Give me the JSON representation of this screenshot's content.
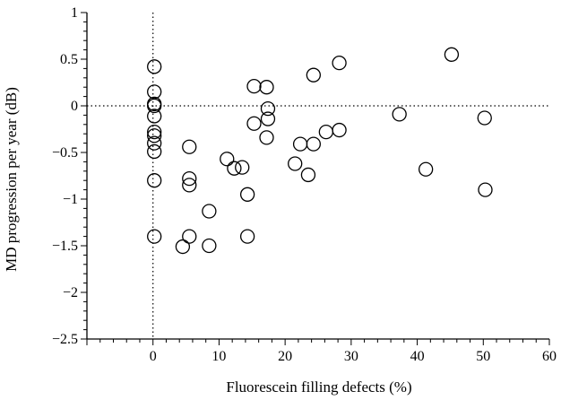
{
  "chart_data": {
    "type": "scatter",
    "title": "",
    "xlabel": "Fluorescein filling defects (%)",
    "ylabel": "MD progression per year (dB)",
    "xlim": [
      -10,
      60
    ],
    "ylim": [
      -2.5,
      1
    ],
    "x_ticks": [
      0,
      10,
      20,
      30,
      40,
      50,
      60
    ],
    "x_tick_labels": [
      "0",
      "10",
      "20",
      "30",
      "40",
      "50",
      "60"
    ],
    "y_ticks": [
      -2.5,
      -2,
      -1.5,
      -1,
      -0.5,
      0,
      0.5,
      1
    ],
    "y_tick_labels": [
      "−2.5",
      "−2",
      "−1.5",
      "−1",
      "−0.5",
      "0",
      "0.5",
      "1"
    ],
    "grid": false,
    "reference_lines": {
      "x": 0,
      "y": 0,
      "style": "dotted"
    },
    "marker": "open-circle",
    "points": [
      {
        "x": 0.2,
        "y": 0.42
      },
      {
        "x": 0.2,
        "y": 0.15
      },
      {
        "x": 0.2,
        "y": 0.02
      },
      {
        "x": 0.2,
        "y": 0.0
      },
      {
        "x": 0.2,
        "y": -0.11
      },
      {
        "x": 0.2,
        "y": -0.28
      },
      {
        "x": 0.2,
        "y": -0.32
      },
      {
        "x": 0.2,
        "y": -0.4
      },
      {
        "x": 0.2,
        "y": -0.49
      },
      {
        "x": 0.2,
        "y": -0.8
      },
      {
        "x": 0.2,
        "y": -1.4
      },
      {
        "x": 4.5,
        "y": -1.51
      },
      {
        "x": 5.5,
        "y": -0.44
      },
      {
        "x": 5.5,
        "y": -0.78
      },
      {
        "x": 5.5,
        "y": -0.85
      },
      {
        "x": 5.5,
        "y": -1.4
      },
      {
        "x": 8.5,
        "y": -1.13
      },
      {
        "x": 8.5,
        "y": -1.5
      },
      {
        "x": 11.2,
        "y": -0.57
      },
      {
        "x": 12.3,
        "y": -0.67
      },
      {
        "x": 13.5,
        "y": -0.66
      },
      {
        "x": 14.3,
        "y": -0.95
      },
      {
        "x": 14.3,
        "y": -1.4
      },
      {
        "x": 15.3,
        "y": 0.21
      },
      {
        "x": 15.3,
        "y": -0.19
      },
      {
        "x": 17.2,
        "y": 0.2
      },
      {
        "x": 17.4,
        "y": -0.03
      },
      {
        "x": 17.4,
        "y": -0.14
      },
      {
        "x": 17.2,
        "y": -0.34
      },
      {
        "x": 21.5,
        "y": -0.62
      },
      {
        "x": 22.3,
        "y": -0.41
      },
      {
        "x": 23.5,
        "y": -0.74
      },
      {
        "x": 24.3,
        "y": 0.33
      },
      {
        "x": 24.3,
        "y": -0.41
      },
      {
        "x": 26.2,
        "y": -0.28
      },
      {
        "x": 28.2,
        "y": 0.46
      },
      {
        "x": 28.2,
        "y": -0.26
      },
      {
        "x": 37.3,
        "y": -0.09
      },
      {
        "x": 41.3,
        "y": -0.68
      },
      {
        "x": 45.2,
        "y": 0.55
      },
      {
        "x": 50.2,
        "y": -0.13
      },
      {
        "x": 50.3,
        "y": -0.9
      }
    ]
  }
}
